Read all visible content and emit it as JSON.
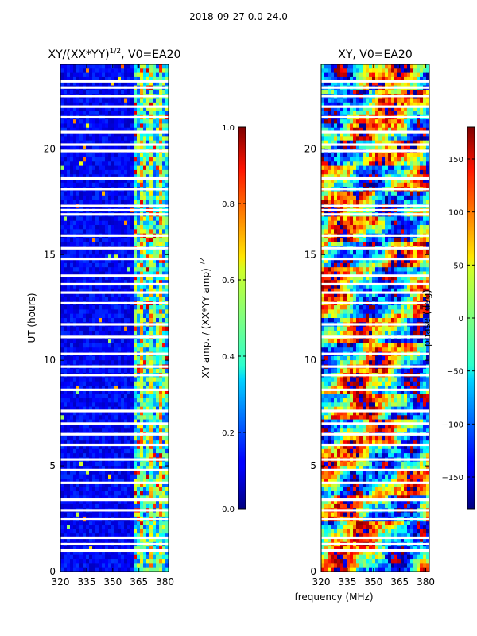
{
  "figure": {
    "suptitle": "2018-09-27 0.0-24.0",
    "shared_xlabel": "frequency (MHz)"
  },
  "chart_data": [
    {
      "type": "heatmap",
      "title_main": "XY/(XX*YY)",
      "title_sup": "1/2",
      "title_tail": ", V0=EA20",
      "xlabel": "",
      "ylabel": "UT (hours)",
      "xlim": [
        320,
        382
      ],
      "ylim": [
        0,
        24
      ],
      "xticks": [
        320,
        335,
        350,
        365,
        380
      ],
      "yticks": [
        0,
        5,
        10,
        15,
        20
      ],
      "quantity": "normalized XY amplitude",
      "colormap": "jet",
      "colorbar": {
        "label_main": "XY amp. / (XX*YY amp)",
        "label_sup": "1/2",
        "range": [
          0.0,
          1.0
        ],
        "ticks": [
          "0.0",
          "0.2",
          "0.4",
          "0.6",
          "0.8",
          "1.0"
        ],
        "tick_values": [
          0.0,
          0.2,
          0.4,
          0.6,
          0.8,
          1.0
        ]
      },
      "band_structure": [
        {
          "freq_from": 320,
          "freq_to": 362,
          "typical_value": 0.1
        },
        {
          "freq_from": 362,
          "freq_to": 382,
          "typical_value": 0.5
        }
      ],
      "missing_time_bands_hours": [
        1.0,
        1.3,
        1.6,
        2.5,
        2.9,
        3.4,
        4.2,
        4.8,
        5.3,
        6.0,
        6.5,
        7.0,
        7.6,
        8.6,
        9.3,
        9.7,
        10.3,
        11.1,
        11.7,
        12.7,
        13.2,
        13.6,
        14.0,
        14.8,
        15.3,
        15.9,
        16.9,
        17.1,
        17.3,
        18.1,
        18.6,
        19.9,
        20.2,
        20.8,
        21.5,
        22.0,
        22.5,
        22.9,
        23.2
      ]
    },
    {
      "type": "heatmap",
      "title": "XY, V0=EA20",
      "xlabel": "",
      "ylabel": "",
      "xlim": [
        320,
        382
      ],
      "ylim": [
        0,
        24
      ],
      "xticks": [
        320,
        335,
        350,
        365,
        380
      ],
      "yticks": [
        0,
        5,
        10,
        15,
        20
      ],
      "quantity": "XY phase",
      "colormap": "jet",
      "colorbar": {
        "label": "phase (deg)",
        "range": [
          -180,
          180
        ],
        "ticks": [
          "−150",
          "−100",
          "−50",
          "0",
          "50",
          "100",
          "150"
        ],
        "tick_values": [
          -150,
          -100,
          -50,
          0,
          50,
          100,
          150
        ]
      },
      "missing_time_bands_hours": [
        1.0,
        1.3,
        1.6,
        2.5,
        2.9,
        3.4,
        4.2,
        4.8,
        5.3,
        6.0,
        6.5,
        7.0,
        7.6,
        8.6,
        9.3,
        9.7,
        10.3,
        11.1,
        11.7,
        12.7,
        13.2,
        13.6,
        14.0,
        14.8,
        15.3,
        15.9,
        16.9,
        17.1,
        17.3,
        18.1,
        18.6,
        19.9,
        20.2,
        20.8,
        21.5,
        22.0,
        22.5,
        22.9,
        23.2
      ]
    }
  ]
}
